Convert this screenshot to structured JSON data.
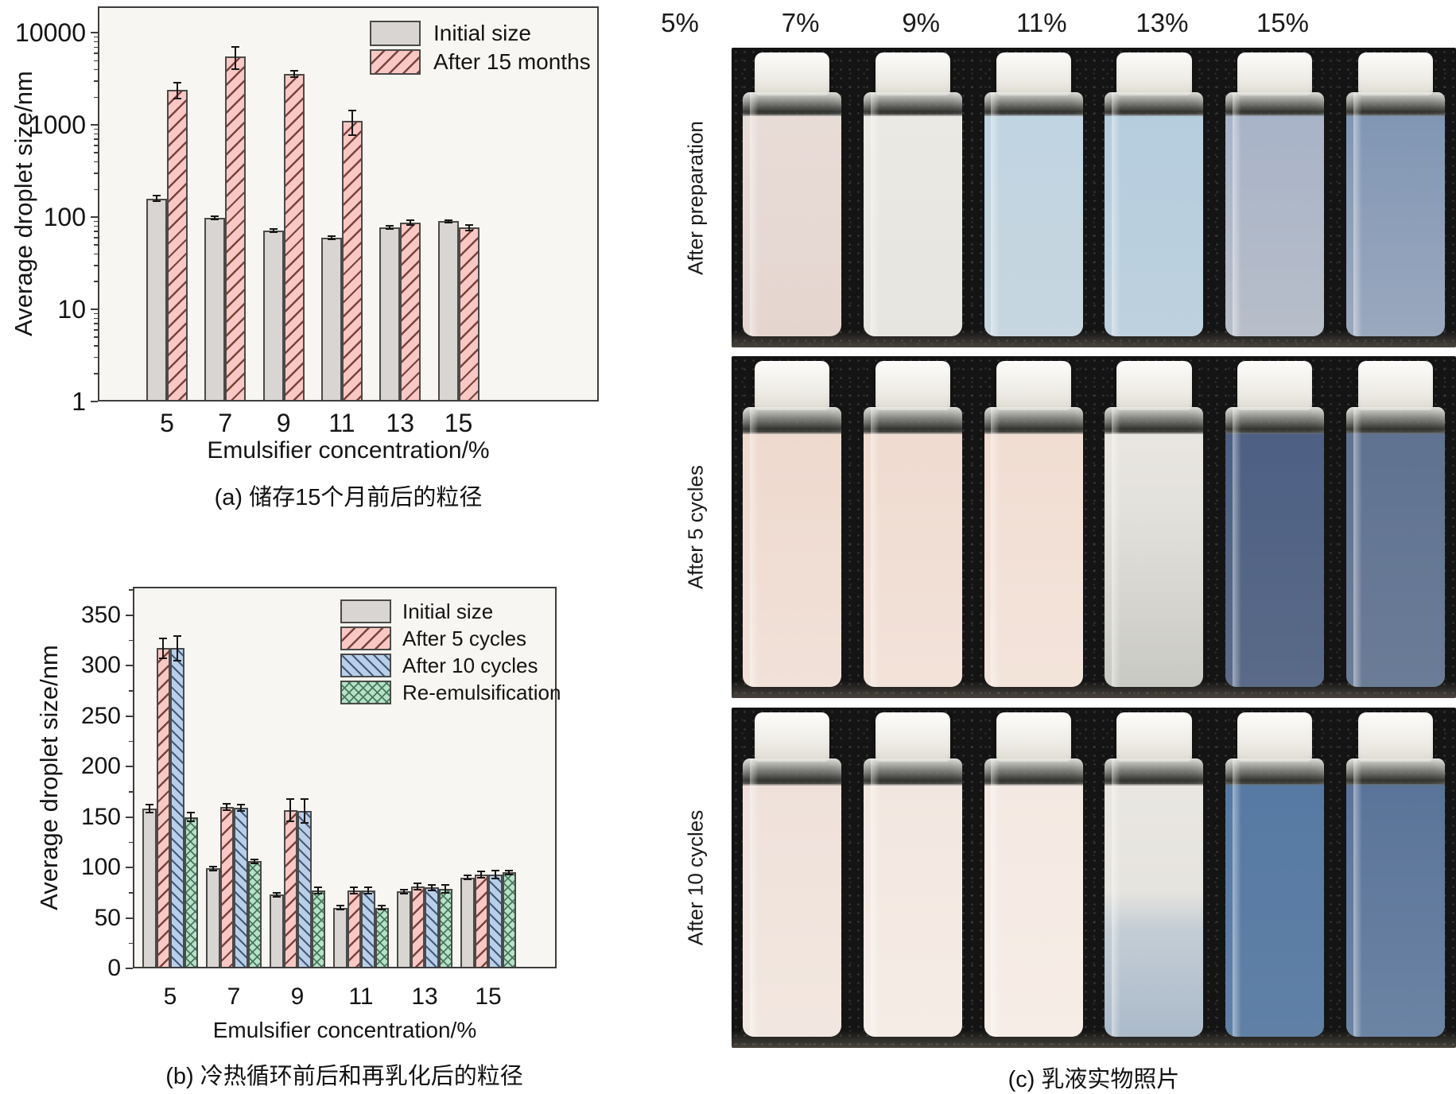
{
  "figure": {
    "captions": {
      "a": "(a) 储存15个月前后的粒径",
      "b": "(b) 冷热循环前后和再乳化后的粒径",
      "c": "(c) 乳液实物照片"
    }
  },
  "chart_data": [
    {
      "id": "a",
      "type": "bar",
      "title": "",
      "xlabel": "Emulsifier concentration/%",
      "ylabel": "Average droplet size/nm",
      "yscale": "log",
      "ylim": [
        1,
        19400
      ],
      "yticks": [
        1,
        10,
        100,
        1000,
        10000
      ],
      "categories": [
        "5",
        "7",
        "9",
        "11",
        "13",
        "15"
      ],
      "grid": false,
      "legend_position": "top-right",
      "series": [
        {
          "name": "Initial size",
          "fill": "#d8d5d2",
          "pattern": "none",
          "hatch": null,
          "values": [
            160,
            98,
            72,
            60,
            77,
            90
          ],
          "errors": [
            10,
            4,
            3,
            2,
            3,
            3
          ]
        },
        {
          "name": "After 15 months",
          "fill": "#f9c8c4",
          "pattern": "hatch-fwd",
          "hatch": "#7a423d",
          "values": [
            2400,
            5500,
            3600,
            1100,
            88,
            77
          ],
          "errors": [
            480,
            1500,
            260,
            330,
            5,
            5
          ]
        }
      ]
    },
    {
      "id": "b",
      "type": "bar",
      "title": "",
      "xlabel": "Emulsifier concentration/%",
      "ylabel": "Average droplet size/nm",
      "yscale": "linear",
      "ylim": [
        0,
        378
      ],
      "yticks": [
        0,
        50,
        100,
        150,
        200,
        250,
        300,
        350
      ],
      "categories": [
        "5",
        "7",
        "9",
        "11",
        "13",
        "15"
      ],
      "grid": false,
      "legend_position": "top-right",
      "series": [
        {
          "name": "Initial size",
          "fill": "#d8d5d2",
          "pattern": "none",
          "hatch": null,
          "values": [
            158,
            99,
            73,
            60,
            76,
            90
          ],
          "errors": [
            4,
            2,
            2,
            2,
            2,
            2
          ]
        },
        {
          "name": "After 5 cycles",
          "fill": "#f9c8c4",
          "pattern": "hatch-fwd",
          "hatch": "#7a423d",
          "values": [
            317,
            160,
            157,
            77,
            81,
            93
          ],
          "errors": [
            10,
            3,
            11,
            3,
            3,
            3
          ]
        },
        {
          "name": "After 10 cycles",
          "fill": "#b9cfe9",
          "pattern": "hatch-back",
          "hatch": "#42587a",
          "values": [
            317,
            159,
            156,
            77,
            80,
            93
          ],
          "errors": [
            12,
            3,
            12,
            3,
            3,
            4
          ]
        },
        {
          "name": "Re-emulsification",
          "fill": "#b6e1c7",
          "pattern": "cross",
          "hatch": "#47775c",
          "values": [
            150,
            106,
            77,
            60,
            79,
            95
          ],
          "errors": [
            4,
            2,
            3,
            2,
            4,
            2
          ]
        }
      ]
    }
  ],
  "photos": {
    "column_labels": [
      "5%",
      "7%",
      "9%",
      "11%",
      "13%",
      "15%"
    ],
    "rows": [
      {
        "label": "After preparation",
        "vials": [
          {
            "liquid": [
              "#e8dcd7 0%",
              "#e5d5cf 100%"
            ]
          },
          {
            "liquid": [
              "#eae9e4 0%",
              "#e7e5df 100%"
            ]
          },
          {
            "liquid": [
              "#c0d4e1 0%",
              "#c7d6e0 100%"
            ]
          },
          {
            "liquid": [
              "#b5cdde 0%",
              "#bed1de 100%"
            ]
          },
          {
            "liquid": [
              "#a8b3c8 0%",
              "#b7bec9 100%"
            ]
          },
          {
            "liquid": [
              "#8096b4 0%",
              "#9ba8be 100%"
            ]
          }
        ]
      },
      {
        "label": "After 5 cycles",
        "vials": [
          {
            "liquid": [
              "#eed9ce 0%",
              "#f1e1d8 100%"
            ]
          },
          {
            "liquid": [
              "#efdbd0 0%",
              "#f2e2d9 100%"
            ]
          },
          {
            "liquid": [
              "#f1ddd2 0%",
              "#f3e4db 100%"
            ]
          },
          {
            "liquid": [
              "#e9e6e1 0%",
              "#e3e1db 30%",
              "#c9c9c3 100%"
            ]
          },
          {
            "liquid": [
              "#4d6084 0%",
              "#5a6a88 100%"
            ]
          },
          {
            "liquid": [
              "#5f7391 0%",
              "#6b7c97 100%"
            ]
          }
        ]
      },
      {
        "label": "After 10 cycles",
        "vials": [
          {
            "liquid": [
              "#efe1da 0%",
              "#f2e7e0 100%"
            ]
          },
          {
            "liquid": [
              "#f2e7e0 0%",
              "#f5ece5 100%"
            ]
          },
          {
            "liquid": [
              "#f4e9e2 0%",
              "#f6ede6 100%"
            ]
          },
          {
            "liquid": [
              "#e9e6e1 0%",
              "#e6e4df 42%",
              "#c3cdd5 58%",
              "#abbaca 100%"
            ]
          },
          {
            "liquid": [
              "#567aa4 0%",
              "#6080a6 100%"
            ]
          },
          {
            "liquid": [
              "#5a7499 0%",
              "#6c84a4 100%"
            ]
          }
        ]
      }
    ]
  }
}
